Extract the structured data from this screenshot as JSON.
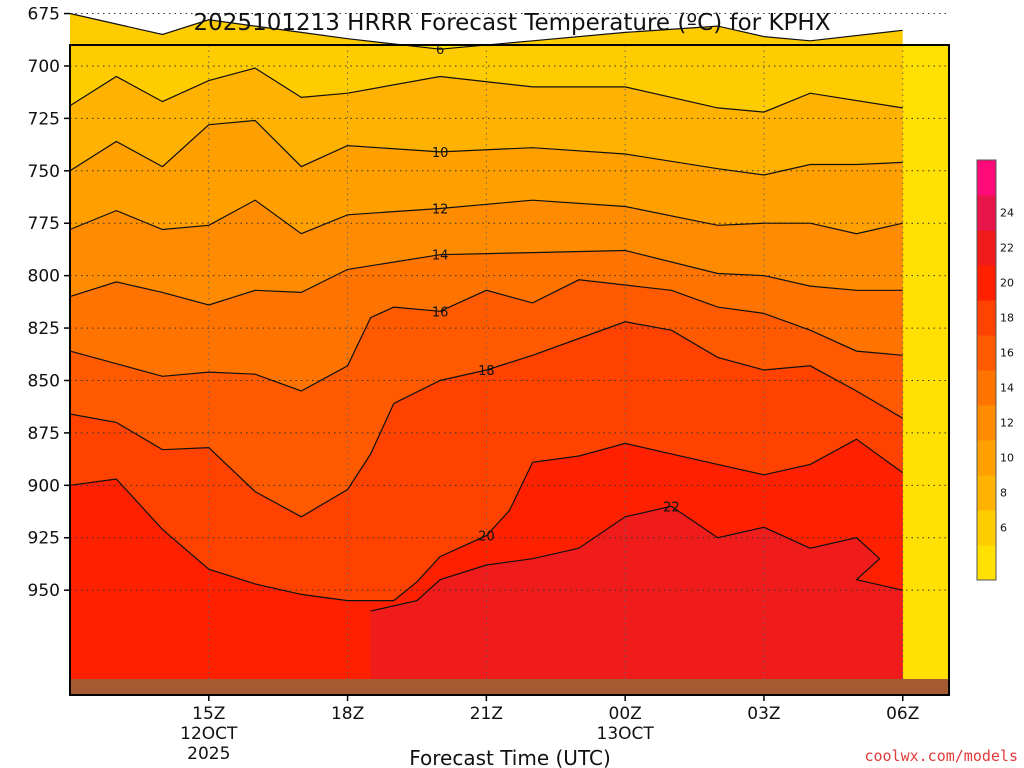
{
  "chart_data": {
    "type": "contour",
    "title": "2025101213 HRRR Forecast Temperature (ºC) for KPHX",
    "xlabel": "Forecast Time (UTC)",
    "ylabel": "",
    "credit": "coolwx.com/models",
    "x_units": "hours after 2025-10-12 12Z",
    "ylim": [
      690,
      1000
    ],
    "y_ticks": [
      {
        "label": "675",
        "value": 675
      },
      {
        "label": "700",
        "value": 700
      },
      {
        "label": "725",
        "value": 725
      },
      {
        "label": "750",
        "value": 750
      },
      {
        "label": "775",
        "value": 775
      },
      {
        "label": "800",
        "value": 800
      },
      {
        "label": "825",
        "value": 825
      },
      {
        "label": "850",
        "value": 850
      },
      {
        "label": "875",
        "value": 875
      },
      {
        "label": "900",
        "value": 900
      },
      {
        "label": "925",
        "value": 925
      },
      {
        "label": "950",
        "value": 950
      }
    ],
    "x_ticks": [
      {
        "value": 3,
        "lines": [
          "15Z",
          "12OCT",
          "2025"
        ]
      },
      {
        "value": 6,
        "lines": [
          "18Z"
        ]
      },
      {
        "value": 9,
        "lines": [
          "21Z"
        ]
      },
      {
        "value": 12,
        "lines": [
          "00Z",
          "13OCT"
        ]
      },
      {
        "value": 15,
        "lines": [
          "03Z"
        ]
      },
      {
        "value": 18,
        "lines": [
          "06Z"
        ]
      }
    ],
    "colorbar": {
      "levels": [
        4,
        6,
        8,
        10,
        12,
        14,
        16,
        18,
        20,
        22,
        24,
        26
      ],
      "colors": [
        "#ffe000",
        "#ffcc00",
        "#ffb300",
        "#ff9f00",
        "#ff8c00",
        "#ff7300",
        "#ff5a00",
        "#ff4200",
        "#ff2000",
        "#f01c1c",
        "#e8154a",
        "#ff0a78"
      ],
      "labels": [
        "6",
        "8",
        "10",
        "12",
        "14",
        "16",
        "18",
        "20",
        "22",
        "24"
      ]
    },
    "isotherms": [
      {
        "value": 6,
        "labeled": true,
        "points": [
          [
            0,
            675
          ],
          [
            1,
            680
          ],
          [
            2,
            685
          ],
          [
            3,
            678
          ],
          [
            4,
            681
          ],
          [
            5,
            684
          ],
          [
            6,
            687
          ],
          [
            8,
            692
          ],
          [
            10,
            688
          ],
          [
            12,
            684
          ],
          [
            14,
            681
          ],
          [
            15,
            686
          ],
          [
            16,
            688
          ],
          [
            18,
            683
          ]
        ]
      },
      {
        "value": 8,
        "labeled": false,
        "points": [
          [
            0,
            719
          ],
          [
            1,
            705
          ],
          [
            2,
            717
          ],
          [
            3,
            707
          ],
          [
            4,
            701
          ],
          [
            5,
            715
          ],
          [
            6,
            713
          ],
          [
            8,
            705
          ],
          [
            10,
            710
          ],
          [
            12,
            710
          ],
          [
            14,
            720
          ],
          [
            15,
            722
          ],
          [
            16,
            713
          ],
          [
            18,
            720
          ]
        ]
      },
      {
        "value": 10,
        "labeled": true,
        "points": [
          [
            0,
            750
          ],
          [
            1,
            736
          ],
          [
            2,
            748
          ],
          [
            3,
            728
          ],
          [
            4,
            726
          ],
          [
            5,
            748
          ],
          [
            6,
            738
          ],
          [
            8,
            741
          ],
          [
            10,
            739
          ],
          [
            12,
            742
          ],
          [
            14,
            749
          ],
          [
            15,
            752
          ],
          [
            16,
            747
          ],
          [
            17,
            747
          ],
          [
            18,
            746
          ]
        ]
      },
      {
        "value": 12,
        "labeled": true,
        "points": [
          [
            0,
            778
          ],
          [
            1,
            769
          ],
          [
            2,
            778
          ],
          [
            3,
            776
          ],
          [
            4,
            764
          ],
          [
            5,
            780
          ],
          [
            6,
            771
          ],
          [
            8,
            768
          ],
          [
            10,
            764
          ],
          [
            12,
            767
          ],
          [
            14,
            776
          ],
          [
            15,
            775
          ],
          [
            16,
            775
          ],
          [
            17,
            780
          ],
          [
            18,
            775
          ]
        ]
      },
      {
        "value": 14,
        "labeled": true,
        "points": [
          [
            0,
            810
          ],
          [
            1,
            803
          ],
          [
            2,
            808
          ],
          [
            3,
            814
          ],
          [
            4,
            807
          ],
          [
            5,
            808
          ],
          [
            6,
            797
          ],
          [
            8,
            790
          ],
          [
            10,
            789
          ],
          [
            12,
            788
          ],
          [
            14,
            799
          ],
          [
            15,
            800
          ],
          [
            16,
            805
          ],
          [
            17,
            807
          ],
          [
            18,
            807
          ]
        ]
      },
      {
        "value": 16,
        "labeled": true,
        "points": [
          [
            0,
            836
          ],
          [
            1,
            842
          ],
          [
            2,
            848
          ],
          [
            3,
            846
          ],
          [
            4,
            847
          ],
          [
            5,
            855
          ],
          [
            6,
            843
          ],
          [
            6.5,
            820
          ],
          [
            7,
            815
          ],
          [
            8,
            817
          ],
          [
            9,
            807
          ],
          [
            10,
            813
          ],
          [
            11,
            802
          ],
          [
            13,
            807
          ],
          [
            14,
            815
          ],
          [
            15,
            818
          ],
          [
            16,
            826
          ],
          [
            17,
            836
          ],
          [
            18,
            838
          ]
        ]
      },
      {
        "value": 18,
        "labeled": true,
        "points": [
          [
            0,
            866
          ],
          [
            1,
            870
          ],
          [
            2,
            883
          ],
          [
            3,
            882
          ],
          [
            4,
            903
          ],
          [
            5,
            915
          ],
          [
            6,
            902
          ],
          [
            6.5,
            885
          ],
          [
            7,
            861
          ],
          [
            8,
            850
          ],
          [
            9,
            845
          ],
          [
            10,
            838
          ],
          [
            11,
            830
          ],
          [
            12,
            822
          ],
          [
            13,
            826
          ],
          [
            14,
            839
          ],
          [
            15,
            845
          ],
          [
            16,
            843
          ],
          [
            17,
            855
          ],
          [
            18,
            868
          ]
        ]
      },
      {
        "value": 20,
        "labeled": true,
        "points": [
          [
            0,
            900
          ],
          [
            1,
            897
          ],
          [
            2,
            921
          ],
          [
            3,
            940
          ],
          [
            4,
            947
          ],
          [
            5,
            952
          ],
          [
            6,
            955
          ],
          [
            7,
            955
          ],
          [
            7.5,
            946
          ],
          [
            8,
            934
          ],
          [
            9,
            924
          ],
          [
            9.5,
            912
          ],
          [
            10,
            889
          ],
          [
            11,
            886
          ],
          [
            12,
            880
          ],
          [
            13,
            885
          ],
          [
            14,
            890
          ],
          [
            15,
            895
          ],
          [
            16,
            890
          ],
          [
            17,
            878
          ],
          [
            18,
            894
          ]
        ]
      },
      {
        "value": 22,
        "labeled": true,
        "points": [
          [
            6.5,
            960
          ],
          [
            7.5,
            955
          ],
          [
            8,
            945
          ],
          [
            9,
            938
          ],
          [
            10,
            935
          ],
          [
            11,
            930
          ],
          [
            12,
            915
          ],
          [
            13,
            910
          ],
          [
            14,
            925
          ],
          [
            15,
            920
          ],
          [
            16,
            930
          ],
          [
            17,
            925
          ],
          [
            17.5,
            935
          ],
          [
            17,
            945
          ],
          [
            18,
            950
          ]
        ]
      }
    ]
  }
}
